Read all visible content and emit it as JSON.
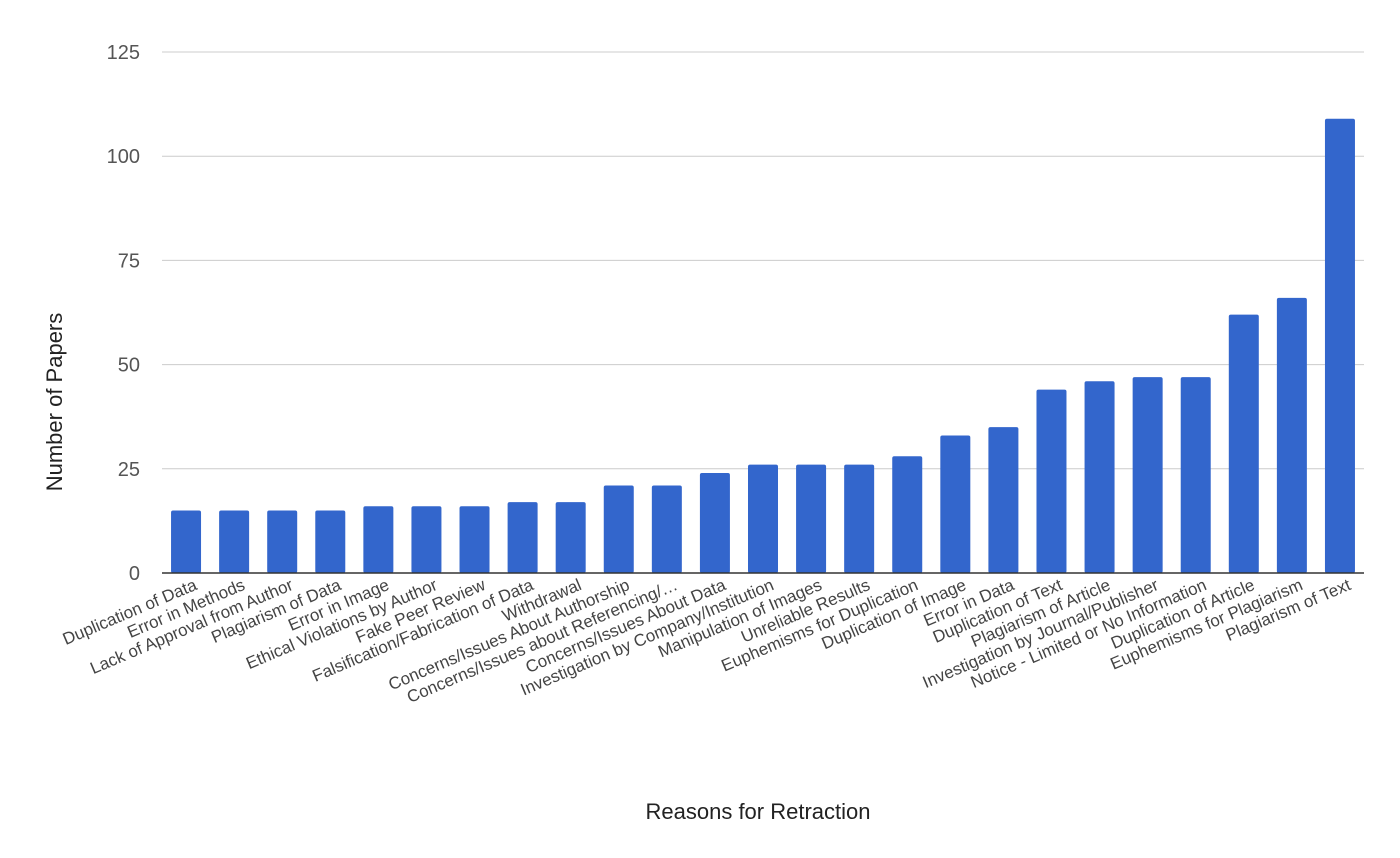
{
  "chart_data": {
    "type": "bar",
    "title": "",
    "xlabel": "Reasons for Retraction",
    "ylabel": "Number of Papers",
    "ylim": [
      0,
      125
    ],
    "yticks": [
      0,
      25,
      50,
      75,
      100,
      125
    ],
    "grid": true,
    "legend": "none",
    "bar_color": "#3366cc",
    "categories": [
      "Duplication of Data",
      "Error in Methods",
      "Lack of Approval from Author",
      "Plagiarism of Data",
      "Error in Image",
      "Ethical Violations by Author",
      "Fake Peer Review",
      "Falsification/Fabrication of Data",
      "Withdrawal",
      "Concerns/Issues About Authorship",
      "Concerns/Issues about Referencing/…",
      "Concerns/Issues About Data",
      "Investigation by Company/Institution",
      "Manipulation of Images",
      "Unreliable Results",
      "Euphemisms for Duplication",
      "Duplication of Image",
      "Error in Data",
      "Duplication of Text",
      "Plagiarism of Article",
      "Investigation by Journal/Publisher",
      "Notice - Limited or No Information",
      "Duplication of Article",
      "Euphemisms for Plagiarism",
      "Plagiarism of Text"
    ],
    "values": [
      15,
      15,
      15,
      15,
      16,
      16,
      16,
      17,
      17,
      21,
      21,
      24,
      26,
      26,
      26,
      28,
      33,
      35,
      44,
      46,
      47,
      47,
      62,
      66,
      109
    ]
  }
}
